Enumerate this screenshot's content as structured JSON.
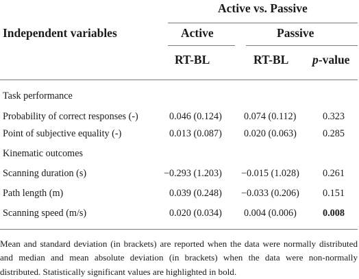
{
  "header": {
    "group_label": "Active vs. Passive",
    "row_header": "Independent variables",
    "col_active": "Active",
    "col_passive": "Passive",
    "sub_active": "RT-BL",
    "sub_passive": "RT-BL",
    "sub_pvalue_italic": "p",
    "sub_pvalue_rest": "-value"
  },
  "sections": [
    {
      "title": "Task performance",
      "rows": [
        {
          "label": "Probability  of correct responses (-)",
          "active": "0.046 (0.124)",
          "passive": "0.074 (0.112)",
          "p": "0.323",
          "bold_p": false
        },
        {
          "label": "Point of subjective equality (-)",
          "active": "0.013 (0.087)",
          "passive": "0.020 (0.063)",
          "p": "0.285",
          "bold_p": false
        }
      ]
    },
    {
      "title": "Kinematic outcomes",
      "rows": [
        {
          "label": "Scanning duration (s)",
          "active": "−0.293 (1.203)",
          "passive": "−0.015 (1.028)",
          "p": "0.261",
          "bold_p": false
        },
        {
          "label": "Path length (m)",
          "active": "0.039 (0.248)",
          "passive": "−0.033 (0.206)",
          "p": "0.151",
          "bold_p": false
        },
        {
          "label": "Scanning speed (m/s)",
          "active": "0.020 (0.034)",
          "passive": "0.004 (0.006)",
          "p": "0.008",
          "bold_p": true
        }
      ]
    }
  ],
  "footnote": "Mean and standard deviation (in brackets) are reported when the data were normally distributed and median and mean absolute deviation (in brackets) when the data were non-normally distributed. Statistically significant values are highlighted in bold."
}
